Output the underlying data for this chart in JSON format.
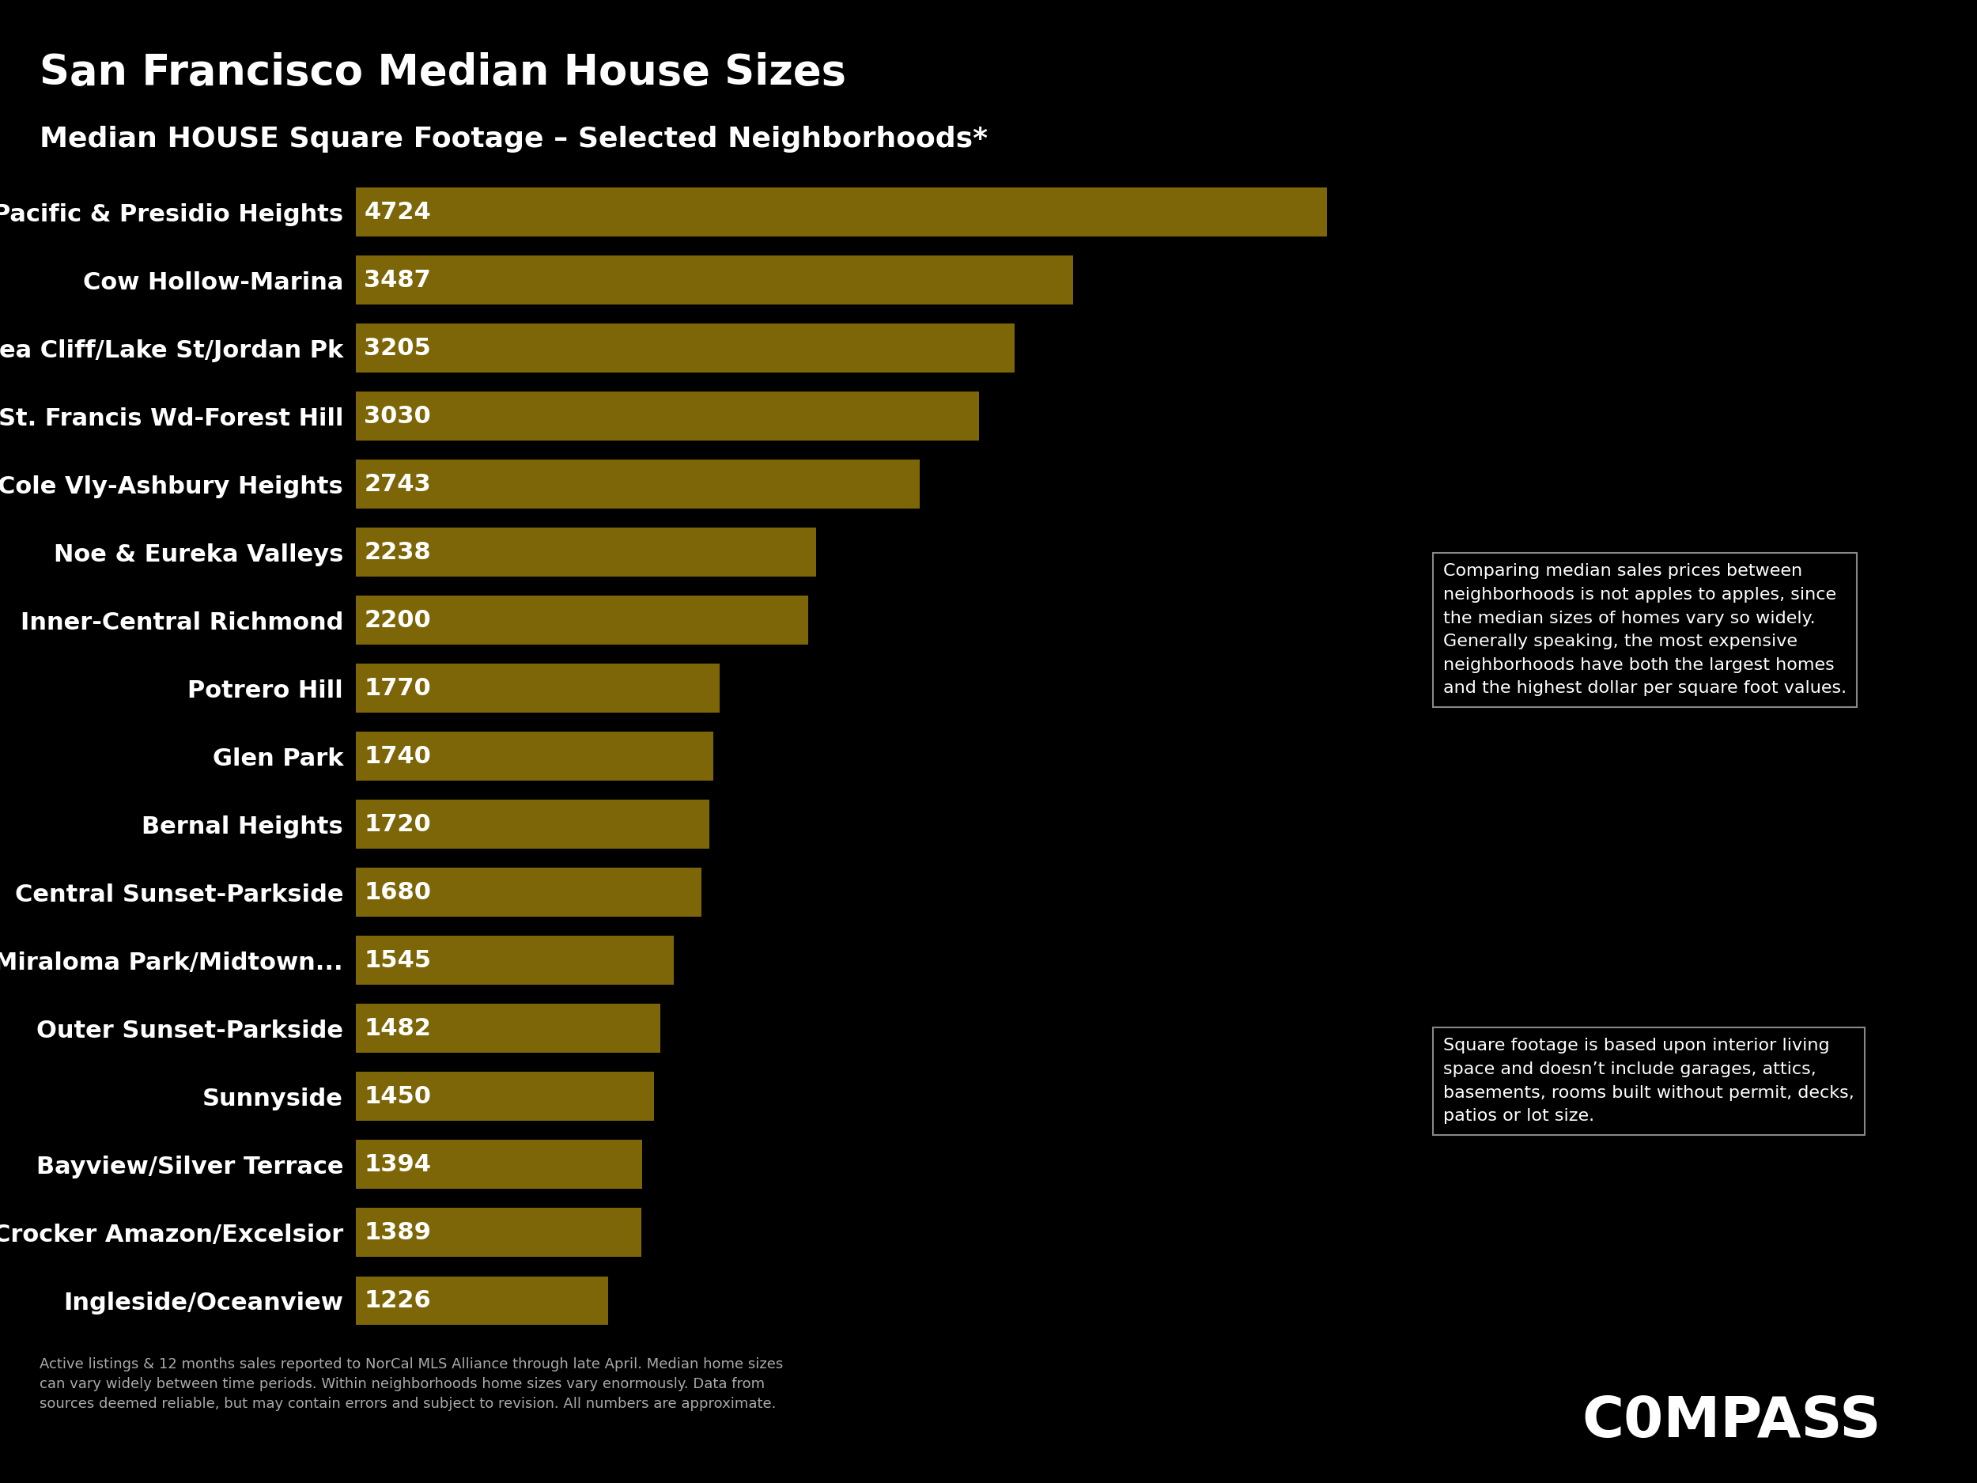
{
  "title": "San Francisco Median House Sizes",
  "subtitle": "Median HOUSE Square Footage – Selected Neighborhoods*",
  "categories": [
    "Pacific & Presidio Heights",
    "Cow Hollow-Marina",
    "Sea Cliff/Lake St/Jordan Pk",
    "St. Francis Wd-Forest Hill",
    "Cole Vly-Ashbury Heights",
    "Noe & Eureka Valleys",
    "Inner-Central Richmond",
    "Potrero Hill",
    "Glen Park",
    "Bernal Heights",
    "Central Sunset-Parkside",
    "Miraloma Park/Midtown...",
    "Outer Sunset-Parkside",
    "Sunnyside",
    "Bayview/Silver Terrace",
    "Crocker Amazon/Excelsior",
    "Ingleside/Oceanview"
  ],
  "values": [
    4724,
    3487,
    3205,
    3030,
    2743,
    2238,
    2200,
    1770,
    1740,
    1720,
    1680,
    1545,
    1482,
    1450,
    1394,
    1389,
    1226
  ],
  "bar_color": "#7d6608",
  "background_color": "#000000",
  "text_color": "#ffffff",
  "title_fontsize": 38,
  "subtitle_fontsize": 26,
  "label_fontsize": 22,
  "value_fontsize": 22,
  "annotation_text1": "Comparing median sales prices between\nneighborhoods is not apples to apples, since\nthe median sizes of homes vary so widely.\nGenerally speaking, the most expensive\nneighborhoods have both the largest homes\nand the highest dollar per square foot values.",
  "annotation_text2": "Square footage is based upon interior living\nspace and doesn’t include garages, attics,\nbasements, rooms built without permit, decks,\npatios or lot size.",
  "footnote": "Active listings & 12 months sales reported to NorCal MLS Alliance through late April. Median home sizes\ncan vary widely between time periods. Within neighborhoods home sizes vary enormously. Data from\nsources deemed reliable, but may contain errors and subject to revision. All numbers are approximate.",
  "compass_text": "C0MPASS",
  "xlim": [
    0,
    5000
  ]
}
